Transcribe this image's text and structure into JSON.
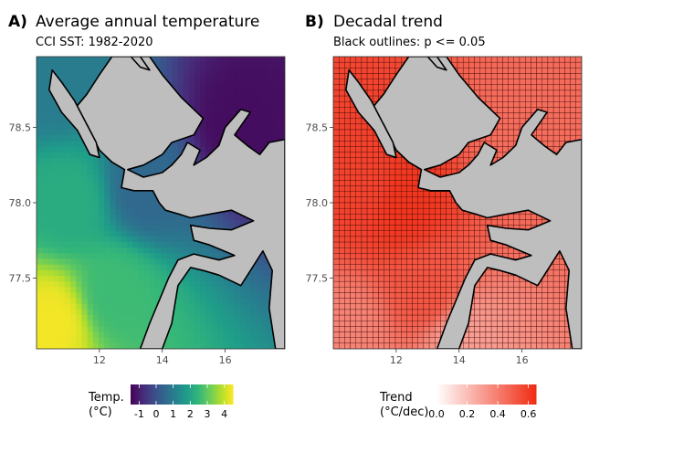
{
  "chart_data": [
    {
      "panel_tag": "A)",
      "type": "heatmap",
      "title": "Average annual temperature",
      "subtitle": "CCI SST: 1982-2020",
      "xlim": [
        10.0,
        17.9
      ],
      "ylim": [
        77.03,
        78.97
      ],
      "x_ticks": [
        12,
        14,
        16
      ],
      "x_tick_labels": [
        "12",
        "14",
        "16"
      ],
      "y_ticks": [
        77.5,
        78.0,
        78.5
      ],
      "y_tick_labels": [
        "77.5",
        "78.0",
        "78.5"
      ],
      "color_scale": "viridis",
      "legend": {
        "title_line1": "Temp.",
        "title_line2": "(°C)",
        "range": [
          -1.5,
          4.5
        ],
        "ticks": [
          -1,
          0,
          1,
          2,
          3,
          4
        ],
        "tick_labels": [
          "-1",
          "0",
          "1",
          "2",
          "3",
          "4"
        ]
      },
      "land_color": "#bebebe",
      "values_description_points": [
        {
          "x": 10.5,
          "y": 77.2,
          "value": 4.4
        },
        {
          "x": 11.0,
          "y": 78.0,
          "value": 2.2
        },
        {
          "x": 10.5,
          "y": 78.8,
          "value": 1.0
        },
        {
          "x": 12.5,
          "y": 77.4,
          "value": 2.6
        },
        {
          "x": 13.5,
          "y": 78.1,
          "value": 0.5
        },
        {
          "x": 16.5,
          "y": 78.5,
          "value": -1.3
        }
      ]
    },
    {
      "panel_tag": "B)",
      "type": "heatmap",
      "title": "Decadal trend",
      "subtitle": "Black outlines: p <= 0.05",
      "xlim": [
        10.0,
        17.9
      ],
      "ylim": [
        77.03,
        78.97
      ],
      "x_ticks": [
        12,
        14,
        16
      ],
      "x_tick_labels": [
        "12",
        "14",
        "16"
      ],
      "y_ticks": [
        77.5,
        78.0,
        78.5
      ],
      "y_tick_labels": [
        "77.5",
        "78.0",
        "78.5"
      ],
      "color_scale": "white-red",
      "legend": {
        "title_line1": "Trend",
        "title_line2": "(°C/dec)",
        "range": [
          0.0,
          0.65
        ],
        "ticks": [
          0.0,
          0.2,
          0.4,
          0.6
        ],
        "tick_labels": [
          "0.0",
          "0.2",
          "0.4",
          "0.6"
        ]
      },
      "land_color": "#bebebe",
      "values_description_points": [
        {
          "x": 12.2,
          "y": 78.0,
          "value": 0.62
        },
        {
          "x": 11.0,
          "y": 78.1,
          "value": 0.58
        },
        {
          "x": 13.0,
          "y": 77.4,
          "value": 0.52
        },
        {
          "x": 14.0,
          "y": 77.1,
          "value": 0.3
        },
        {
          "x": 10.5,
          "y": 77.1,
          "value": 0.38
        },
        {
          "x": 16.0,
          "y": 78.4,
          "value": 0.45
        }
      ]
    }
  ]
}
